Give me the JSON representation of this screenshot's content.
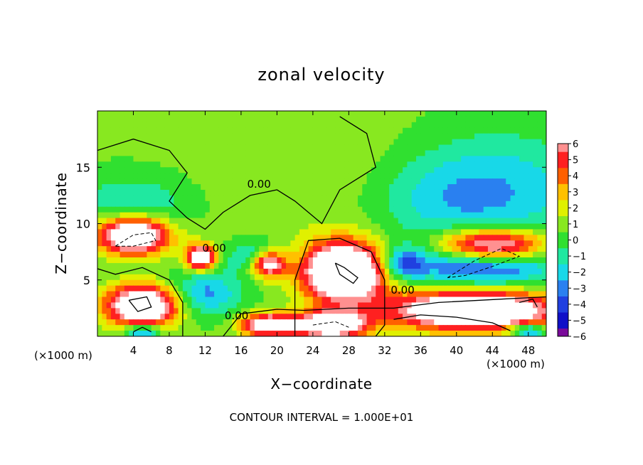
{
  "chart_data": {
    "type": "heatmap",
    "title": "zonal velocity",
    "xlabel": "X−coordinate",
    "ylabel": "Z−coordinate",
    "x_unit_left": "(×1000 m)",
    "x_unit_right": "(×1000 m)",
    "xlim": [
      0,
      50
    ],
    "ylim": [
      0,
      20
    ],
    "xticks": [
      4,
      8,
      12,
      16,
      20,
      24,
      28,
      32,
      36,
      40,
      44,
      48
    ],
    "yticks": [
      5,
      10,
      15
    ],
    "footer": "CONTOUR INTERVAL = 1.000E+01",
    "contour_labels": [
      {
        "text": "0.00",
        "x": 18.0,
        "y": 13.2
      },
      {
        "text": "0.00",
        "x": 13.0,
        "y": 7.5
      },
      {
        "text": "0.00",
        "x": 15.5,
        "y": 1.5
      },
      {
        "text": "0.00",
        "x": 34.0,
        "y": 3.8
      }
    ],
    "colorbar": {
      "min": -6,
      "max": 6,
      "tick_labels": [
        "6",
        "5",
        "4",
        "3",
        "2",
        "1",
        "0",
        "−1",
        "−2",
        "−3",
        "−4",
        "−5",
        "−6"
      ],
      "ramp": [
        {
          "v": -6,
          "color": "#7a0a9a"
        },
        {
          "v": -5,
          "color": "#1010c8"
        },
        {
          "v": -4,
          "color": "#2040e0"
        },
        {
          "v": -3,
          "color": "#2a80f0"
        },
        {
          "v": -2,
          "color": "#18d8e8"
        },
        {
          "v": -1,
          "color": "#20e8a0"
        },
        {
          "v": 0,
          "color": "#30e030"
        },
        {
          "v": 1,
          "color": "#88e820"
        },
        {
          "v": 2,
          "color": "#e0f000"
        },
        {
          "v": 3,
          "color": "#ffc000"
        },
        {
          "v": 4,
          "color": "#ff6000"
        },
        {
          "v": 5,
          "color": "#ff2020"
        },
        {
          "v": 6,
          "color": "#ff9090"
        }
      ]
    },
    "field": {
      "background": 0.6,
      "blobs": [
        {
          "x": 45,
          "y": 13,
          "rx": 10,
          "ry": 5,
          "v": -2.8
        },
        {
          "x": 37,
          "y": 12,
          "rx": 8,
          "ry": 4,
          "v": -1.6
        },
        {
          "x": 4,
          "y": 11.5,
          "rx": 6,
          "ry": 2.5,
          "v": -2.5
        },
        {
          "x": 25,
          "y": 14,
          "rx": 12,
          "ry": 6,
          "v": 0.9
        },
        {
          "x": 4,
          "y": 9,
          "rx": 4,
          "ry": 1.7,
          "v": 10
        },
        {
          "x": 11.5,
          "y": 7,
          "rx": 1.6,
          "ry": 1.1,
          "v": 9
        },
        {
          "x": 18,
          "y": 7,
          "rx": 3,
          "ry": 1.4,
          "v": -4
        },
        {
          "x": 19,
          "y": 6.5,
          "rx": 2,
          "ry": 1.2,
          "v": 9
        },
        {
          "x": 27.5,
          "y": 5.7,
          "rx": 4.5,
          "ry": 2.6,
          "v": 12
        },
        {
          "x": 5,
          "y": 2.7,
          "rx": 4,
          "ry": 1.8,
          "v": 10
        },
        {
          "x": 43,
          "y": 6.3,
          "rx": 8,
          "ry": 1.8,
          "v": -5
        },
        {
          "x": 44,
          "y": 8,
          "rx": 6,
          "ry": 1.5,
          "v": 9
        },
        {
          "x": 42,
          "y": 2.3,
          "rx": 9,
          "ry": 1.7,
          "v": 11
        },
        {
          "x": 12,
          "y": 3.8,
          "rx": 4,
          "ry": 2,
          "v": -3.5
        },
        {
          "x": 26,
          "y": 1,
          "rx": 4,
          "ry": 1.2,
          "v": 9
        },
        {
          "x": 19,
          "y": 1,
          "rx": 3,
          "ry": 1,
          "v": 8
        },
        {
          "x": 5,
          "y": 0.5,
          "rx": 2,
          "ry": 0.6,
          "v": -5
        },
        {
          "x": 48,
          "y": 0.5,
          "rx": 2,
          "ry": 0.6,
          "v": -5
        },
        {
          "x": 34,
          "y": 6.5,
          "rx": 2.5,
          "ry": 1.5,
          "v": -4
        }
      ],
      "contours": [
        {
          "style": "solid",
          "points": [
            [
              0,
              16.5
            ],
            [
              4,
              17.5
            ],
            [
              8,
              16.5
            ],
            [
              10,
              14.5
            ],
            [
              8,
              12
            ],
            [
              10,
              10.5
            ],
            [
              12,
              9.5
            ],
            [
              14,
              11
            ],
            [
              17,
              12.5
            ],
            [
              20,
              13
            ],
            [
              22,
              12
            ],
            [
              25,
              10
            ],
            [
              27,
              13
            ],
            [
              31,
              15
            ],
            [
              30,
              18
            ],
            [
              27,
              19.5
            ]
          ]
        },
        {
          "style": "solid",
          "points": [
            [
              0,
              6
            ],
            [
              2,
              5.5
            ],
            [
              5,
              6.1
            ],
            [
              8,
              5
            ],
            [
              9.5,
              3
            ],
            [
              9.5,
              0
            ]
          ]
        },
        {
          "style": "solid",
          "points": [
            [
              14,
              0
            ],
            [
              16,
              2
            ],
            [
              20,
              2.4
            ],
            [
              23,
              2.3
            ],
            [
              28,
              2.5
            ],
            [
              33,
              2.5
            ],
            [
              38,
              3
            ],
            [
              45,
              3.3
            ],
            [
              50,
              3.5
            ]
          ]
        },
        {
          "style": "solid",
          "points": [
            [
              22,
              0
            ],
            [
              22,
              5
            ],
            [
              23.5,
              8.5
            ],
            [
              27,
              8.7
            ],
            [
              30.5,
              7.5
            ],
            [
              32,
              5
            ],
            [
              32,
              1
            ],
            [
              31,
              0
            ]
          ]
        },
        {
          "style": "solid",
          "points": [
            [
              26.5,
              6.5
            ],
            [
              27.5,
              6.1
            ],
            [
              29,
              5.2
            ],
            [
              28.5,
              4.7
            ],
            [
              27,
              5.5
            ],
            [
              26.5,
              6.5
            ]
          ]
        },
        {
          "style": "solid",
          "points": [
            [
              3.5,
              3.2
            ],
            [
              5.5,
              3.5
            ],
            [
              6,
              2.6
            ],
            [
              4.5,
              2.2
            ],
            [
              3.5,
              3.2
            ]
          ]
        },
        {
          "style": "solid",
          "points": [
            [
              33,
              1.5
            ],
            [
              36,
              1.9
            ],
            [
              40,
              1.7
            ],
            [
              44,
              1.2
            ],
            [
              46,
              0.5
            ]
          ]
        },
        {
          "style": "solid",
          "points": [
            [
              4,
              0.4
            ],
            [
              5,
              0.8
            ],
            [
              6,
              0.4
            ]
          ]
        },
        {
          "style": "solid",
          "points": [
            [
              47,
              3
            ],
            [
              48.5,
              3.3
            ],
            [
              49,
              2.6
            ]
          ]
        },
        {
          "style": "dashed",
          "points": [
            [
              2,
              8
            ],
            [
              4,
              9
            ],
            [
              6,
              9.2
            ],
            [
              6.5,
              8.5
            ],
            [
              4,
              8
            ],
            [
              2,
              8
            ]
          ]
        },
        {
          "style": "dashed",
          "points": [
            [
              39,
              5.2
            ],
            [
              42,
              6.7
            ],
            [
              45,
              7.8
            ],
            [
              47,
              7.1
            ],
            [
              44,
              6.2
            ],
            [
              41,
              5.4
            ],
            [
              39,
              5.2
            ]
          ]
        },
        {
          "style": "dashed",
          "points": [
            [
              24,
              1
            ],
            [
              26.5,
              1.3
            ],
            [
              28,
              0.8
            ]
          ]
        }
      ]
    }
  }
}
